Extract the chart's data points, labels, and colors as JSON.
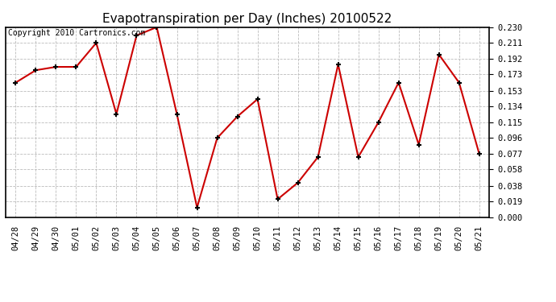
{
  "title": "Evapotranspiration per Day (Inches) 20100522",
  "copyright_text": "Copyright 2010 Cartronics.com",
  "x_labels": [
    "04/28",
    "04/29",
    "04/30",
    "05/01",
    "05/02",
    "05/03",
    "05/04",
    "05/05",
    "05/06",
    "05/07",
    "05/08",
    "05/09",
    "05/10",
    "05/11",
    "05/12",
    "05/13",
    "05/14",
    "05/15",
    "05/16",
    "05/17",
    "05/18",
    "05/19",
    "05/20",
    "05/21"
  ],
  "y_values": [
    0.163,
    0.178,
    0.182,
    0.182,
    0.211,
    0.125,
    0.22,
    0.23,
    0.125,
    0.012,
    0.096,
    0.122,
    0.143,
    0.022,
    0.042,
    0.073,
    0.185,
    0.073,
    0.115,
    0.163,
    0.088,
    0.197,
    0.163,
    0.077
  ],
  "y_min": 0.0,
  "y_max": 0.23,
  "y_ticks": [
    0.0,
    0.019,
    0.038,
    0.058,
    0.077,
    0.096,
    0.115,
    0.134,
    0.153,
    0.173,
    0.192,
    0.211,
    0.23
  ],
  "line_color": "#cc0000",
  "marker": "+",
  "marker_size": 5,
  "marker_edge_width": 1.5,
  "line_width": 1.5,
  "background_color": "#ffffff",
  "plot_bg_color": "#ffffff",
  "grid_color": "#bbbbbb",
  "grid_linestyle": "--",
  "title_fontsize": 11,
  "tick_fontsize": 7.5,
  "copyright_fontsize": 7
}
